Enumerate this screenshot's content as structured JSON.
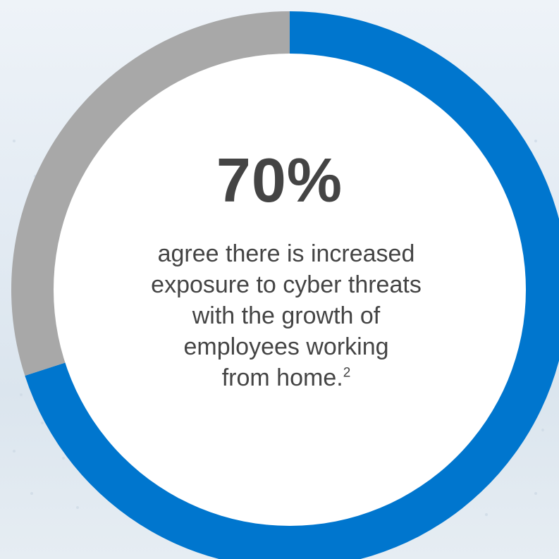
{
  "colors": {
    "accent_blue": "#0076ce",
    "remainder_gray": "#a8a8a8",
    "center_fill": "#ffffff",
    "text": "#444444"
  },
  "stat": {
    "value": "70%",
    "caption_lines": [
      "agree there is increased",
      "exposure to cyber threats",
      "with the growth of",
      "employees working",
      "from home."
    ],
    "footnote_marker": "2"
  },
  "chart_data": {
    "type": "pie",
    "style": "donut",
    "values": [
      70,
      30
    ],
    "colors": [
      "#0076ce",
      "#a8a8a8"
    ],
    "start": "top",
    "direction": "clockwise"
  }
}
